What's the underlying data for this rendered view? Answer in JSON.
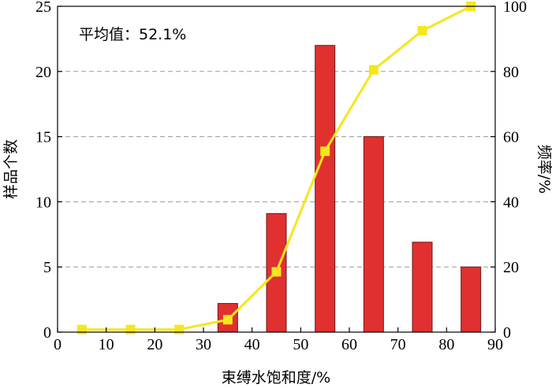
{
  "chart_data": {
    "type": "bar",
    "categories": [
      5,
      15,
      25,
      35,
      45,
      55,
      65,
      75,
      85
    ],
    "xlabel": "束缚水饱和度/%",
    "xlim": [
      0,
      90
    ],
    "xticks": [
      0,
      10,
      20,
      30,
      40,
      50,
      60,
      70,
      80,
      90
    ],
    "ylabel": "样品个数",
    "ylim": [
      0,
      25
    ],
    "yticks": [
      0,
      5,
      10,
      15,
      20,
      25
    ],
    "y2label": "频率/%",
    "y2lim": [
      0,
      100
    ],
    "y2ticks": [
      0,
      20,
      40,
      60,
      80,
      100
    ],
    "annotation": "平均值：52.1%",
    "grid": "horizontal dashed",
    "series": [
      {
        "kind": "bar",
        "axis": "left",
        "color": "#e03030",
        "x": [
          35,
          45,
          55,
          65,
          75,
          85
        ],
        "values": [
          2.2,
          9.1,
          22,
          15,
          6.9,
          5
        ]
      },
      {
        "kind": "line",
        "axis": "right",
        "color": "#f5e61e",
        "marker": "square",
        "x": [
          5,
          15,
          25,
          35,
          45,
          55,
          65,
          75,
          85
        ],
        "values": [
          0.8,
          0.8,
          0.8,
          3.8,
          18.5,
          55.5,
          80.5,
          92.5,
          100
        ]
      }
    ]
  }
}
